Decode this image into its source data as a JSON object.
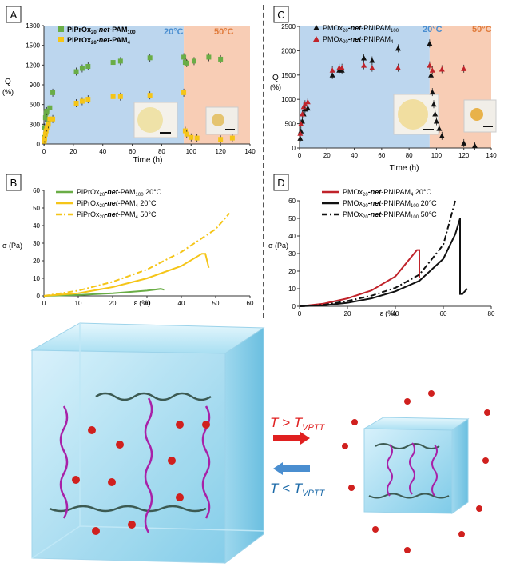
{
  "panels": {
    "A": {
      "label": "A",
      "region_20": "20°C",
      "region_50": "50°C",
      "xlabel": "Time (h)",
      "ylabel_q": "Q",
      "ylabel_unit": "(%)",
      "legend": [
        {
          "main": "PiPrOx",
          "sub": "20",
          "mid": "-",
          "bold": "net",
          "tail": "-PAM",
          "tailsub": "100"
        },
        {
          "main": "PiPrOx",
          "sub": "20",
          "mid": "-",
          "bold": "net",
          "tail": "-PAM",
          "tailsub": "4"
        }
      ],
      "xticks": [
        "0",
        "20",
        "40",
        "60",
        "80",
        "100",
        "120",
        "140"
      ],
      "yticks": [
        "0",
        "300",
        "600",
        "900",
        "1200",
        "1500",
        "1800"
      ]
    },
    "B": {
      "label": "B",
      "xlabel_eps": "ε (%)",
      "ylabel": "σ (Pa)",
      "legend": [
        {
          "main": "PiPrOx",
          "sub": "20",
          "bold": "-net",
          "tail": "-PAM",
          "tailsub": "100",
          "temp": " 20°C"
        },
        {
          "main": "PiPrOx",
          "sub": "20",
          "bold": "-net",
          "tail": "-PAM",
          "tailsub": "4",
          "temp": " 20°C"
        },
        {
          "main": "PiPrOx",
          "sub": "20",
          "bold": "-net",
          "tail": "-PAM",
          "tailsub": "4",
          "temp": " 50°C"
        }
      ],
      "xticks": [
        "0",
        "10",
        "20",
        "30",
        "40",
        "50",
        "60"
      ],
      "yticks": [
        "0",
        "10",
        "20",
        "30",
        "40",
        "50",
        "60"
      ]
    },
    "C": {
      "label": "C",
      "region_20": "20°C",
      "region_50": "50°C",
      "xlabel": "Time (h)",
      "ylabel_q": "Q",
      "ylabel_unit": "(%)",
      "legend": [
        {
          "main": "PMOx",
          "sub": "20",
          "bold": "-net",
          "tail": "-PNIPAM",
          "tailsub": "100"
        },
        {
          "main": "PMOx",
          "sub": "20",
          "bold": "-net",
          "tail": "-PNIPAM",
          "tailsub": "4"
        }
      ],
      "xticks": [
        "0",
        "20",
        "40",
        "60",
        "80",
        "100",
        "120",
        "140"
      ],
      "yticks": [
        "0",
        "500",
        "1000",
        "1500",
        "2000",
        "2500"
      ]
    },
    "D": {
      "label": "D",
      "xlabel": "ε (%)",
      "ylabel": "σ (Pa)",
      "legend": [
        {
          "main": "PMOx",
          "sub": "20",
          "bold": "-net",
          "tail": "-PNIPAM",
          "tailsub": "4",
          "temp": " 20°C"
        },
        {
          "main": "PMOx",
          "sub": "20",
          "bold": "-net",
          "tail": "-PNIPAM",
          "tailsub": "100",
          "temp": " 20°C"
        },
        {
          "main": "PMOx",
          "sub": "20",
          "bold": "-net",
          "tail": "-PNIPAM",
          "tailsub": "100",
          "temp": " 50°C"
        }
      ],
      "xticks": [
        "0",
        "20",
        "40",
        "60",
        "80"
      ],
      "yticks": [
        "0",
        "10",
        "20",
        "30",
        "40",
        "50",
        "60"
      ]
    }
  },
  "schematic": {
    "heat_label_T": "T > T",
    "heat_sub": "VPTT",
    "cool_label_T": "T < T",
    "cool_sub": "VPTT"
  },
  "colors": {
    "blue_region": "#bcd6ee",
    "peach_region": "#f8cdb5",
    "green": "#6aad46",
    "yellow": "#f5c518",
    "black": "#111111",
    "red": "#c0232a",
    "accent_blue": "#4a8ed0"
  },
  "chart_data": [
    {
      "type": "scatter",
      "panel": "A",
      "xlabel": "Time (h)",
      "ylabel": "Q (%)",
      "xlim": [
        0,
        140
      ],
      "ylim": [
        0,
        1800
      ],
      "regions": [
        {
          "label": "20°C",
          "x": [
            0,
            95
          ]
        },
        {
          "label": "50°C",
          "x": [
            95,
            140
          ]
        }
      ],
      "series": [
        {
          "name": "PiPrOx20-net-PAM100",
          "color": "#6aad46",
          "marker": "square",
          "x": [
            0.2,
            0.5,
            1,
            1.5,
            2,
            3,
            4,
            6,
            22,
            26,
            30,
            47,
            52,
            72,
            95,
            96,
            97,
            102,
            112,
            120
          ],
          "y": [
            100,
            250,
            400,
            470,
            500,
            330,
            550,
            780,
            1100,
            1150,
            1180,
            1240,
            1260,
            1310,
            1320,
            1240,
            1230,
            1260,
            1320,
            1290
          ]
        },
        {
          "name": "PiPrOx20-net-PAM4",
          "color": "#f5c518",
          "marker": "square",
          "x": [
            0.2,
            0.5,
            1,
            1.5,
            2,
            3,
            4,
            6,
            22,
            26,
            30,
            47,
            52,
            72,
            95,
            96,
            97,
            100,
            104,
            120,
            128
          ],
          "y": [
            40,
            80,
            150,
            200,
            250,
            300,
            380,
            380,
            620,
            650,
            680,
            720,
            720,
            740,
            780,
            200,
            150,
            100,
            90,
            70,
            90
          ]
        }
      ]
    },
    {
      "type": "line",
      "panel": "B",
      "xlabel": "ε (%)",
      "ylabel": "σ (Pa)",
      "xlim": [
        0,
        60
      ],
      "ylim": [
        0,
        60
      ],
      "series": [
        {
          "name": "PiPrOx20-net-PAM100 20°C",
          "color": "#6aad46",
          "style": "solid",
          "x": [
            0,
            10,
            20,
            30,
            34,
            35
          ],
          "y": [
            0,
            0.5,
            1.5,
            3,
            4,
            3.5
          ]
        },
        {
          "name": "PiPrOx20-net-PAM4 20°C",
          "color": "#f5c518",
          "style": "solid",
          "x": [
            0,
            10,
            20,
            30,
            40,
            46,
            47,
            48
          ],
          "y": [
            0,
            1.5,
            5,
            10,
            17,
            24,
            24,
            16
          ]
        },
        {
          "name": "PiPrOx20-net-PAM4 50°C",
          "color": "#f5c518",
          "style": "dashdot",
          "x": [
            0,
            10,
            20,
            30,
            40,
            50,
            54
          ],
          "y": [
            0,
            3,
            8,
            15,
            25,
            38,
            47
          ]
        }
      ]
    },
    {
      "type": "scatter",
      "panel": "C",
      "xlabel": "Time (h)",
      "ylabel": "Q (%)",
      "xlim": [
        0,
        140
      ],
      "ylim": [
        0,
        2500
      ],
      "regions": [
        {
          "label": "20°C",
          "x": [
            0,
            95
          ]
        },
        {
          "label": "50°C",
          "x": [
            95,
            140
          ]
        }
      ],
      "series": [
        {
          "name": "PMOx20-net-PNIPAM100",
          "color": "#111111",
          "marker": "triangle",
          "x": [
            0.5,
            1,
            2,
            3,
            4,
            6,
            24,
            29,
            31,
            47,
            53,
            72,
            95,
            96,
            97,
            98,
            99,
            100,
            102,
            104,
            120,
            128
          ],
          "y": [
            200,
            350,
            550,
            700,
            800,
            820,
            1500,
            1600,
            1600,
            1850,
            1800,
            2050,
            2150,
            1500,
            1150,
            900,
            700,
            550,
            400,
            250,
            100,
            50
          ]
        },
        {
          "name": "PMOx20-net-PNIPAM4",
          "color": "#c0232a",
          "marker": "triangle",
          "x": [
            0.5,
            1,
            2,
            3,
            4,
            6,
            24,
            29,
            31,
            47,
            53,
            72,
            95,
            97,
            104,
            120
          ],
          "y": [
            300,
            500,
            700,
            850,
            900,
            950,
            1600,
            1650,
            1650,
            1700,
            1650,
            1650,
            1700,
            1600,
            1620,
            1630
          ]
        }
      ]
    },
    {
      "type": "line",
      "panel": "D",
      "xlabel": "ε (%)",
      "ylabel": "σ (Pa)",
      "xlim": [
        0,
        80
      ],
      "ylim": [
        0,
        60
      ],
      "series": [
        {
          "name": "PMOx20-net-PNIPAM4 20°C",
          "color": "#c0232a",
          "style": "solid",
          "x": [
            0,
            10,
            20,
            30,
            40,
            49,
            50,
            50
          ],
          "y": [
            0,
            1.5,
            4.5,
            9,
            17,
            32,
            32,
            16
          ]
        },
        {
          "name": "PMOx20-net-PNIPAM100 20°C",
          "color": "#111111",
          "style": "solid",
          "x": [
            0,
            10,
            20,
            30,
            40,
            50,
            60,
            65,
            67,
            67,
            68,
            70
          ],
          "y": [
            0,
            0.5,
            2,
            4.5,
            8.5,
            14.5,
            27,
            41,
            50,
            7,
            7,
            10
          ]
        },
        {
          "name": "PMOx20-net-PNIPAM100 50°C",
          "color": "#111111",
          "style": "dashdot",
          "x": [
            0,
            10,
            20,
            30,
            40,
            50,
            60,
            65
          ],
          "y": [
            0,
            0.8,
            3,
            6,
            10.5,
            18,
            35,
            60
          ]
        }
      ]
    }
  ]
}
